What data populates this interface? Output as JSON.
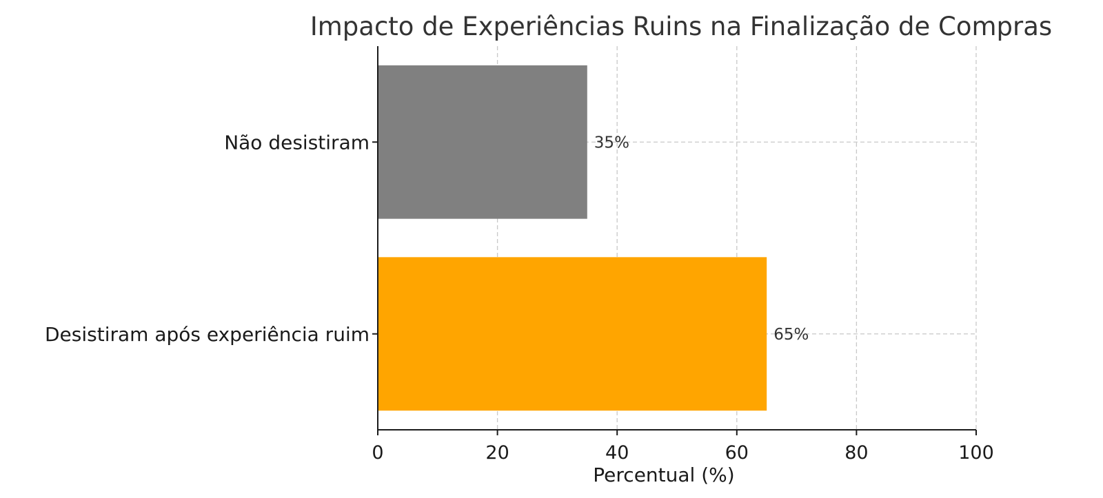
{
  "chart_data": {
    "type": "bar",
    "orientation": "horizontal",
    "title": "Impacto de Experiências Ruins na Finalização de Compras",
    "xlabel": "Percentual (%)",
    "ylabel": "",
    "xlim": [
      0,
      100
    ],
    "xticks": [
      0,
      20,
      40,
      60,
      80,
      100
    ],
    "grid": true,
    "categories": [
      "Desistiram após experiência ruim",
      "Não desistiram"
    ],
    "values": [
      65,
      35
    ],
    "value_labels": [
      "65%",
      "35%"
    ],
    "colors": [
      "#FFA500",
      "#808080"
    ]
  }
}
